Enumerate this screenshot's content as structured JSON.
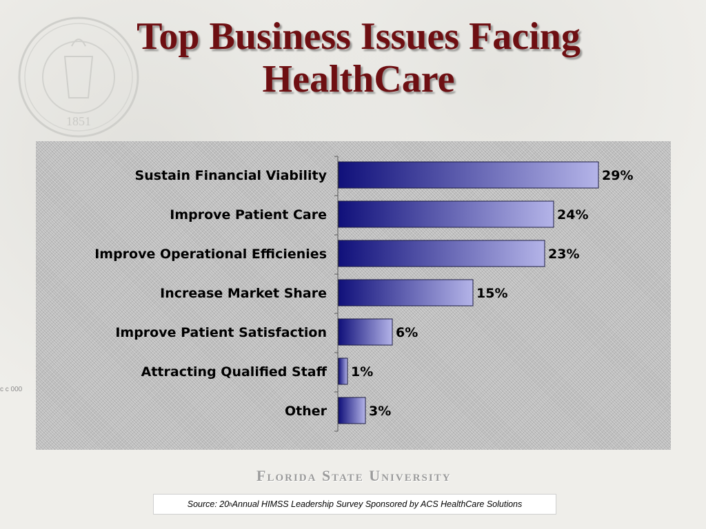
{
  "slide": {
    "title_line1": "Top Business Issues Facing",
    "title_line2": "HealthCare",
    "seal_text_top": "FLORIDA STATE UNIVERSITY",
    "seal_year": "1851",
    "wordmark": "Florida State University",
    "source_prefix": "Source: 20",
    "source_superscript": "h",
    "source_suffix": " Annual HIMSS Leadership Survey Sponsored by ACS HealthCare Solutions",
    "side_mark": "c c 000"
  },
  "colors": {
    "title": "#6e0f12",
    "bar_dark": "#10107a",
    "bar_light": "#b4b4e8",
    "panel": "#bdbdbd"
  },
  "chart_data": {
    "type": "bar",
    "orientation": "horizontal",
    "categories": [
      "Sustain Financial Viability",
      "Improve Patient Care",
      "Improve Operational Efficienies",
      "Increase Market Share",
      "Improve Patient Satisfaction",
      "Attracting Qualified Staff",
      "Other"
    ],
    "values": [
      29,
      24,
      23,
      15,
      6,
      1,
      3
    ],
    "value_labels": [
      "29%",
      "24%",
      "23%",
      "15%",
      "6%",
      "1%",
      "3%"
    ],
    "unit": "%",
    "xlim": [
      0,
      30
    ],
    "grid": false,
    "legend": "none"
  }
}
